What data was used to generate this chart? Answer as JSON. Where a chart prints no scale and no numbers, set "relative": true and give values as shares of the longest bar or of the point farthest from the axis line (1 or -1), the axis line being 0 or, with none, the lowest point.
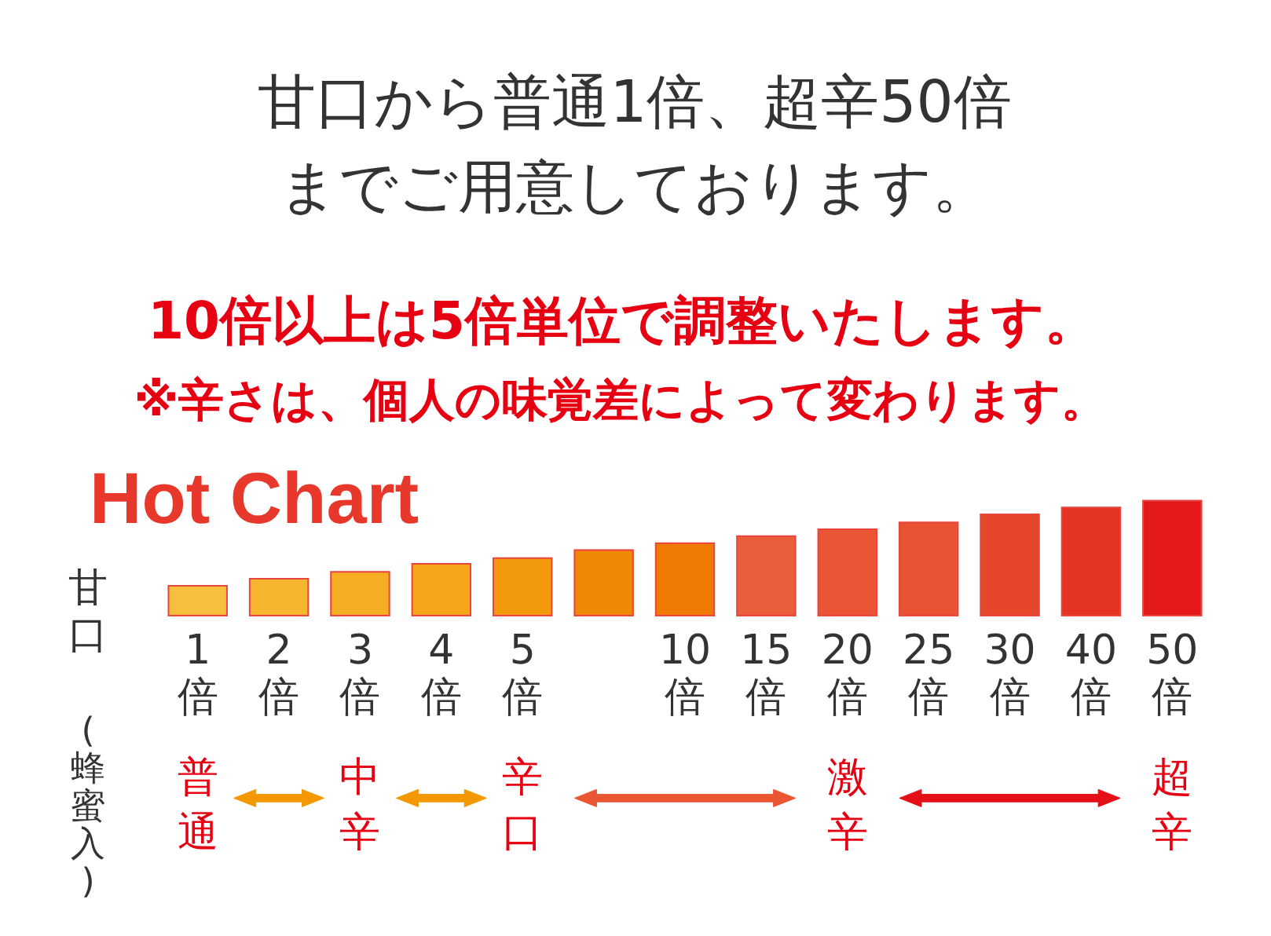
{
  "chart_data": {
    "type": "bar",
    "title": "甘口から普通1倍、超辛50倍までご用意しております。",
    "subtitle": "10倍以上は5倍単位で調整いたします。",
    "annotations": [
      "※辛さは、個人の味覚差によって変わります。",
      "Hot Chart",
      "甘口",
      "(蜂蜜入)",
      "普通",
      "中辛",
      "辛口",
      "激辛",
      "超辛"
    ],
    "categories": [
      "1倍",
      "2倍",
      "3倍",
      "4倍",
      "5倍",
      null,
      "10倍",
      "15倍",
      "20倍",
      "25倍",
      "30倍",
      "40倍",
      "50倍"
    ],
    "values": [
      0.26,
      0.32,
      0.38,
      0.45,
      0.5,
      0.57,
      0.63,
      0.69,
      0.75,
      0.81,
      0.88,
      0.94,
      1
    ],
    "colors": [
      "#f8bf3e",
      "#f7b630",
      "#f5ad24",
      "#f4a519",
      "#f39a0c",
      "#ef8707",
      "#ee7a03",
      "#ea5e3c",
      "#e95535",
      "#e85333",
      "#e6472c",
      "#e53424",
      "#e4191b"
    ],
    "relative": true
  }
}
